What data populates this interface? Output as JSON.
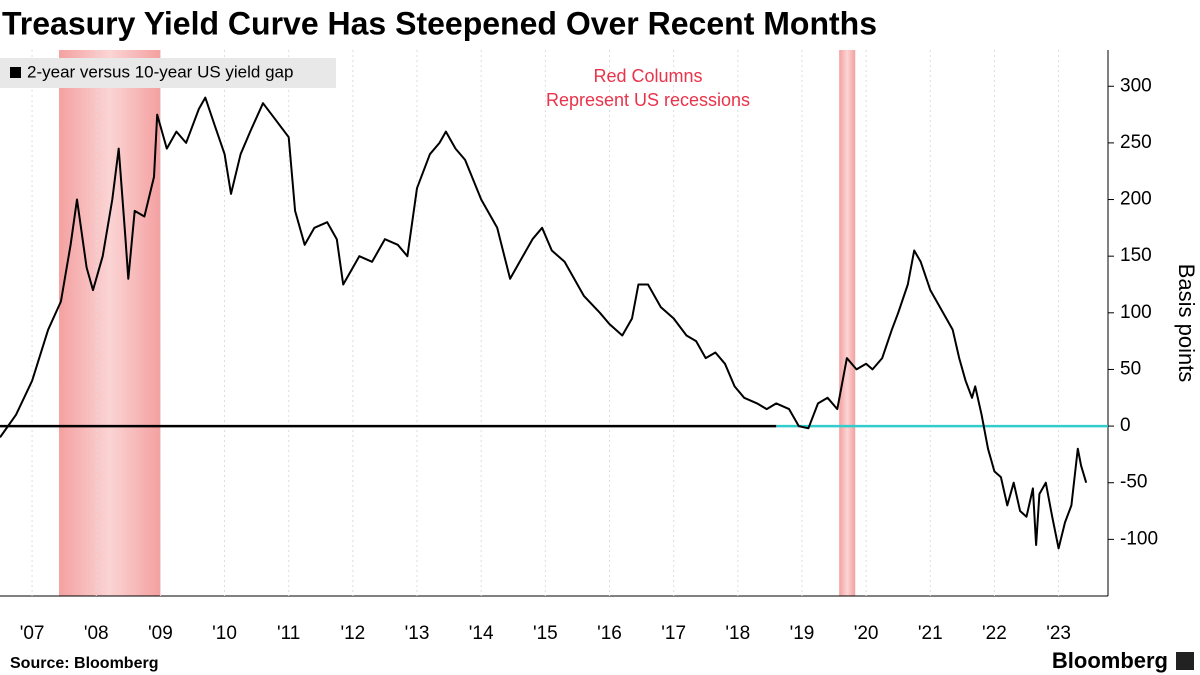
{
  "chart_data": {
    "type": "line",
    "title": "Treasury Yield Curve Has Steepened Over Recent Months",
    "legend": "2-year versus 10-year US yield gap",
    "annotation": [
      "Red Columns",
      "Represent US recessions"
    ],
    "y_label": "Basis points",
    "source": "Source: Bloomberg",
    "brand": "Bloomberg",
    "x": [
      2007.0,
      2007.25,
      2007.5,
      2007.75,
      2007.95,
      2008.1,
      2008.2,
      2008.35,
      2008.45,
      2008.6,
      2008.75,
      2008.85,
      2008.95,
      2009.0,
      2009.1,
      2009.25,
      2009.4,
      2009.45,
      2009.6,
      2009.75,
      2009.9,
      2010.1,
      2010.2,
      2010.35,
      2010.5,
      2010.6,
      2010.75,
      2010.9,
      2011.1,
      2011.3,
      2011.5,
      2011.6,
      2011.75,
      2011.9,
      2012.1,
      2012.25,
      2012.35,
      2012.5,
      2012.6,
      2012.8,
      2013.0,
      2013.2,
      2013.35,
      2013.5,
      2013.7,
      2013.85,
      2013.95,
      2014.1,
      2014.25,
      2014.5,
      2014.75,
      2014.95,
      2015.1,
      2015.3,
      2015.45,
      2015.6,
      2015.8,
      2015.95,
      2016.1,
      2016.35,
      2016.5,
      2016.7,
      2016.85,
      2016.95,
      2017.1,
      2017.3,
      2017.5,
      2017.7,
      2017.85,
      2018.0,
      2018.15,
      2018.3,
      2018.45,
      2018.6,
      2018.8,
      2018.95,
      2019.1,
      2019.3,
      2019.45,
      2019.6,
      2019.75,
      2019.9,
      2020.05,
      2020.2,
      2020.35,
      2020.5,
      2020.6,
      2020.75,
      2020.9,
      2021.0,
      2021.15,
      2021.25,
      2021.35,
      2021.5,
      2021.7,
      2021.85,
      2021.95,
      2022.05,
      2022.15,
      2022.2,
      2022.3,
      2022.4,
      2022.5,
      2022.6,
      2022.7,
      2022.8,
      2022.9,
      2023.0,
      2023.1,
      2023.15,
      2023.2,
      2023.3,
      2023.4,
      2023.5,
      2023.6,
      2023.7,
      2023.8,
      2023.85,
      2023.93
    ],
    "series": [
      {
        "name": "2-year versus 10-year US yield gap",
        "color": "#000000",
        "values": [
          -10,
          10,
          40,
          85,
          110,
          160,
          200,
          140,
          120,
          150,
          200,
          245,
          170,
          130,
          190,
          185,
          220,
          275,
          245,
          260,
          250,
          280,
          290,
          265,
          240,
          205,
          240,
          260,
          285,
          270,
          255,
          190,
          160,
          175,
          180,
          165,
          125,
          140,
          150,
          145,
          165,
          160,
          150,
          210,
          240,
          250,
          260,
          245,
          235,
          200,
          175,
          130,
          145,
          165,
          175,
          155,
          145,
          130,
          115,
          100,
          90,
          80,
          95,
          125,
          125,
          105,
          95,
          80,
          75,
          60,
          65,
          55,
          35,
          25,
          20,
          15,
          20,
          15,
          0,
          -2,
          20,
          25,
          15,
          60,
          50,
          55,
          50,
          60,
          85,
          100,
          125,
          155,
          145,
          120,
          100,
          85,
          60,
          40,
          25,
          35,
          10,
          -20,
          -40,
          -45,
          -70,
          -50,
          -75,
          -80,
          -55,
          -105,
          -60,
          -50,
          -80,
          -108,
          -85,
          -70,
          -20,
          -35,
          -50
        ]
      }
    ],
    "recessions": [
      [
        2007.92,
        2009.5
      ],
      [
        2020.08,
        2020.33
      ]
    ],
    "recession_color": "#f4a0a0",
    "zero_line": {
      "value": 0,
      "colors": [
        "#000000",
        "#33cccc"
      ],
      "switch_x": 2019.1
    },
    "xlim": [
      2007,
      2024.27
    ],
    "xticks": [
      {
        "value": 2007.5,
        "label": "'07"
      },
      {
        "value": 2008.5,
        "label": "'08"
      },
      {
        "value": 2009.5,
        "label": "'09"
      },
      {
        "value": 2010.5,
        "label": "'10"
      },
      {
        "value": 2011.5,
        "label": "'11"
      },
      {
        "value": 2012.5,
        "label": "'12"
      },
      {
        "value": 2013.5,
        "label": "'13"
      },
      {
        "value": 2014.5,
        "label": "'14"
      },
      {
        "value": 2015.5,
        "label": "'15"
      },
      {
        "value": 2016.5,
        "label": "'16"
      },
      {
        "value": 2017.5,
        "label": "'17"
      },
      {
        "value": 2018.5,
        "label": "'18"
      },
      {
        "value": 2019.5,
        "label": "'19"
      },
      {
        "value": 2020.5,
        "label": "'20"
      },
      {
        "value": 2021.5,
        "label": "'21"
      },
      {
        "value": 2022.5,
        "label": "'22"
      },
      {
        "value": 2023.5,
        "label": "'23"
      }
    ],
    "ylim": [
      -150,
      332
    ],
    "yticks": [
      300,
      250,
      200,
      150,
      100,
      50,
      0,
      -50,
      -100
    ]
  }
}
